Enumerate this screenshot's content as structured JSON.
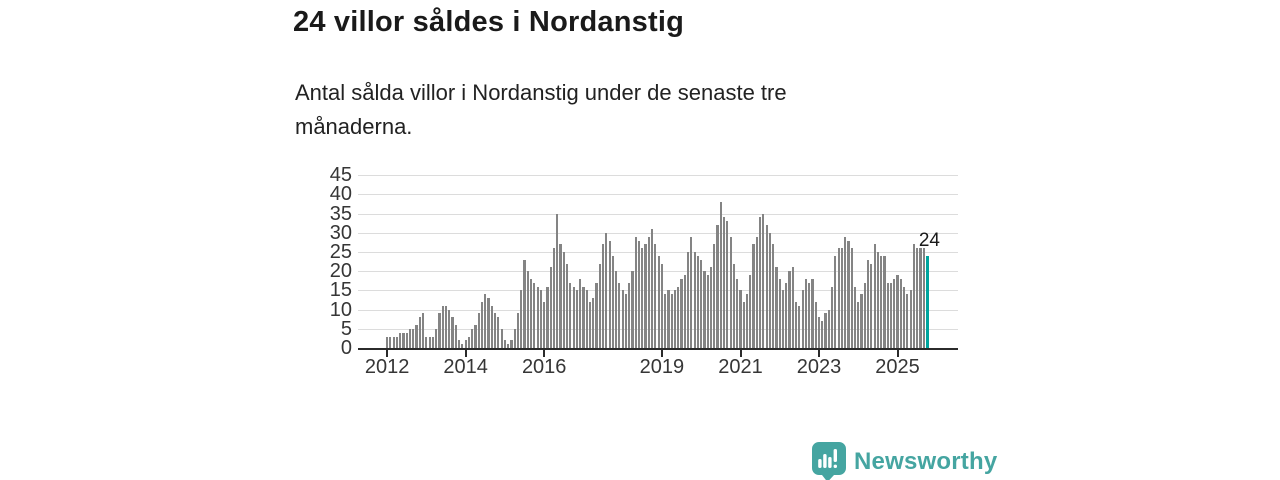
{
  "header": {
    "subtitle": "Antal sålda villor i Nordanstig under de senaste tre månaderna."
  },
  "chart_data": {
    "type": "bar",
    "title": "24 villor såldes i Nordanstig",
    "xlabel": "",
    "ylabel": "",
    "x_start": "2012-01",
    "x_end": "2025-10",
    "x_tick_years": [
      2012,
      2014,
      2016,
      2019,
      2021,
      2023,
      2025
    ],
    "x_tick_labels": [
      "2012",
      "2014",
      "2016",
      "2019",
      "2021",
      "2023",
      "2025"
    ],
    "y_ticks": [
      0,
      5,
      10,
      15,
      20,
      25,
      30,
      35,
      40,
      45
    ],
    "ylim": [
      0,
      45
    ],
    "grid": true,
    "legend": "none",
    "values": [
      3,
      3,
      3,
      3,
      4,
      4,
      4,
      5,
      5,
      6,
      8,
      9,
      3,
      3,
      3,
      5,
      9,
      11,
      11,
      10,
      8,
      6,
      2,
      1,
      2,
      3,
      5,
      6,
      9,
      12,
      14,
      13,
      11,
      9,
      8,
      5,
      2,
      1,
      2,
      5,
      9,
      15,
      23,
      20,
      18,
      17,
      16,
      15,
      12,
      16,
      21,
      26,
      35,
      27,
      25,
      22,
      17,
      16,
      15,
      18,
      16,
      15,
      12,
      13,
      17,
      22,
      27,
      30,
      28,
      24,
      20,
      17,
      15,
      14,
      17,
      20,
      29,
      28,
      26,
      27,
      29,
      31,
      27,
      24,
      22,
      14,
      15,
      14,
      15,
      16,
      18,
      19,
      25,
      29,
      25,
      24,
      23,
      20,
      19,
      21,
      27,
      32,
      38,
      34,
      33,
      29,
      22,
      18,
      15,
      12,
      14,
      19,
      27,
      29,
      34,
      35,
      32,
      30,
      27,
      21,
      18,
      15,
      17,
      20,
      21,
      12,
      11,
      15,
      18,
      17,
      18,
      12,
      8,
      7,
      9,
      10,
      16,
      24,
      26,
      26,
      29,
      28,
      26,
      16,
      12,
      14,
      17,
      23,
      22,
      27,
      25,
      24,
      24,
      17,
      17,
      18,
      19,
      18,
      16,
      14,
      15,
      27,
      26,
      26,
      26,
      24
    ],
    "highlight_last_bar": true,
    "annotation_label": "24",
    "bar_color": "#848484",
    "highlight_color": "#00a59e",
    "gridline_color": "#dcdcdc",
    "axis_color": "#2b2b2b"
  },
  "footer": {
    "brand": "Newsworthy",
    "logo_icon": "speech-bubble-bar-chart",
    "brand_color": "#45a5a1"
  }
}
